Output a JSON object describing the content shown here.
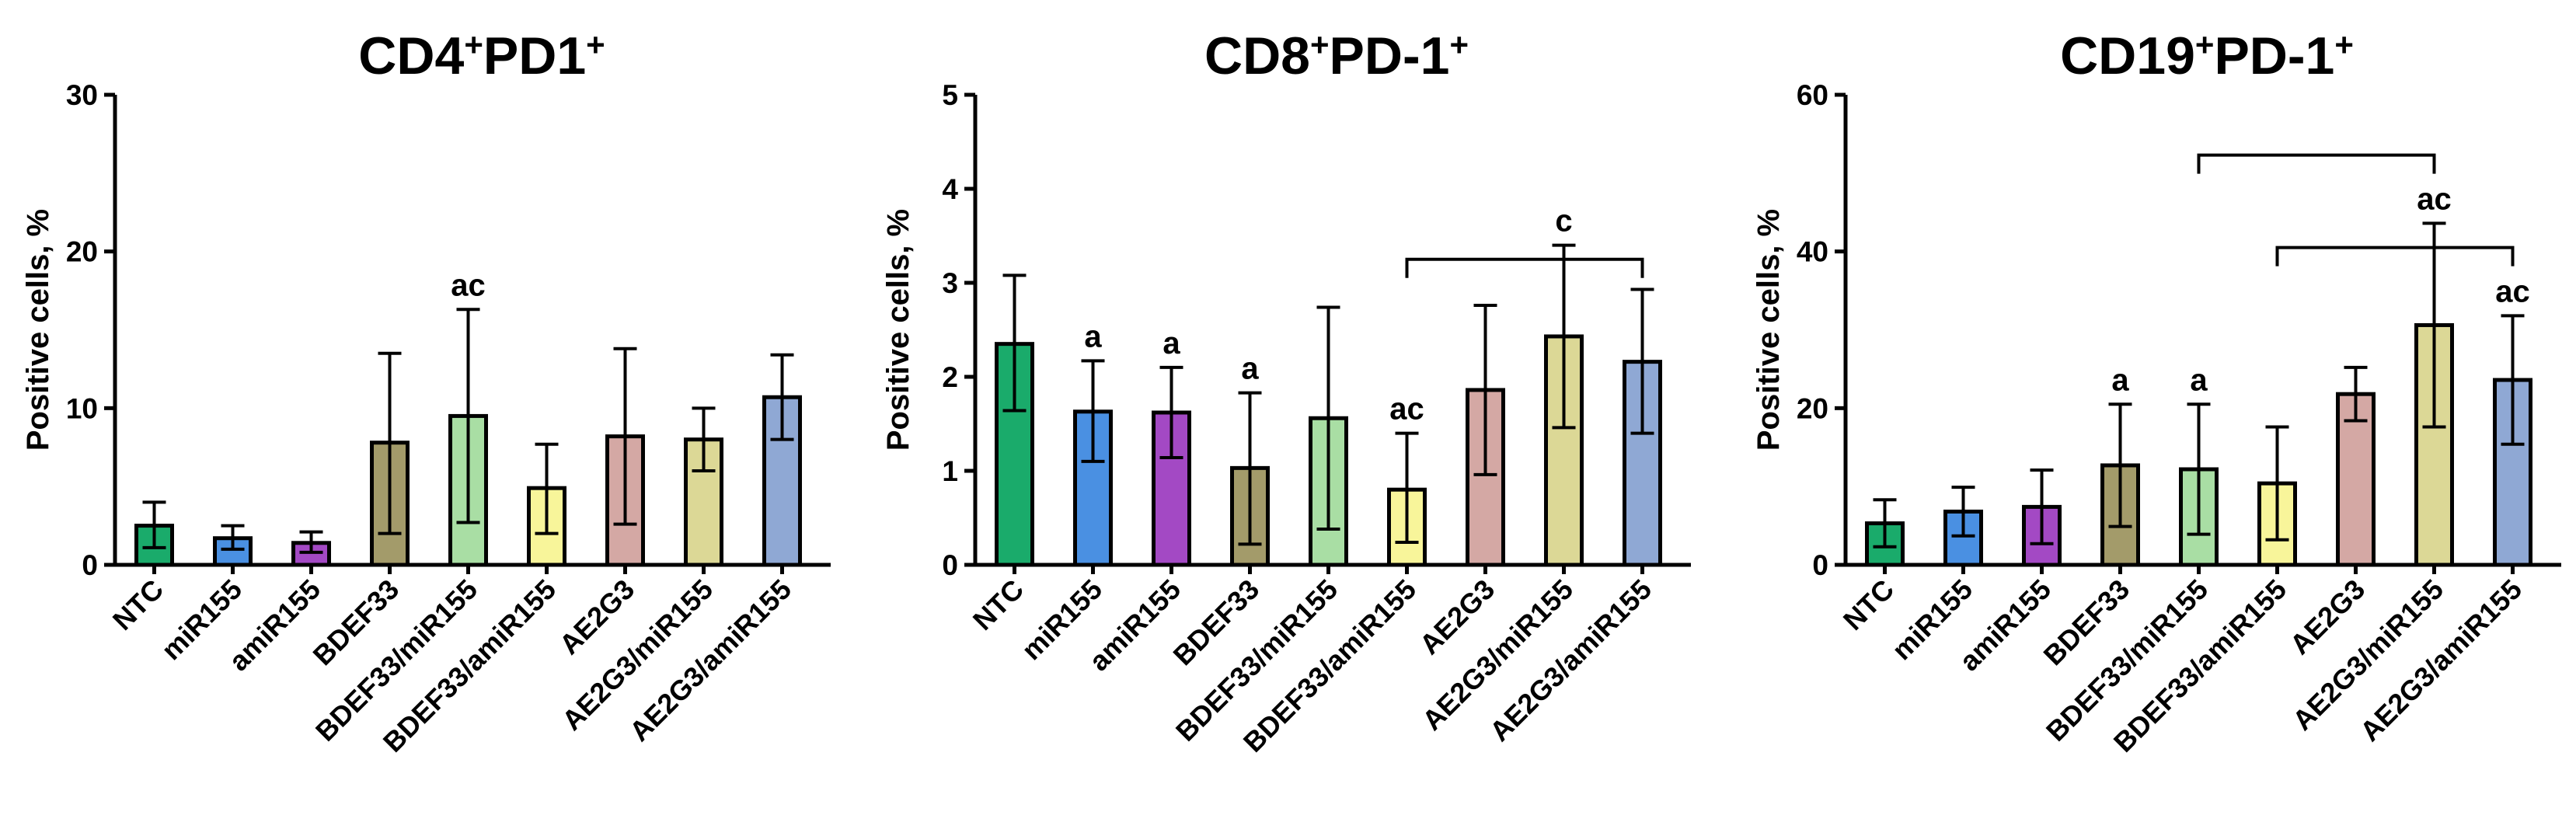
{
  "chart_data": [
    {
      "type": "bar",
      "title": "CD4",
      "title_sup1": "+",
      "title_mid": "PD1",
      "title_sup2": "+",
      "ylabel": "Positive cells, %",
      "ylim": [
        0,
        30
      ],
      "yticks": [
        0,
        10,
        20,
        30
      ],
      "categories": [
        "NTC",
        "miR155",
        "amiR155",
        "BDEF33",
        "BDEF33/miR155",
        "BDEF33/amiR155",
        "AE2G3",
        "AE2G3/miR155",
        "AE2G3/amiR155"
      ],
      "values": [
        2.5,
        1.7,
        1.4,
        7.8,
        9.5,
        4.9,
        8.2,
        8.0,
        10.7
      ],
      "error_upper": [
        4.0,
        2.5,
        2.1,
        13.5,
        16.3,
        7.7,
        13.8,
        10.0,
        13.4
      ],
      "error_lower": [
        1.1,
        1.0,
        0.8,
        2.0,
        2.7,
        2.0,
        2.6,
        6.0,
        8.0
      ],
      "colors": [
        "#1aab6b",
        "#4a90e2",
        "#a349c4",
        "#a39b6a",
        "#a9dea4",
        "#f8f59a",
        "#d4a8a4",
        "#dcd896",
        "#8fa8d4"
      ],
      "annotations": [
        {
          "category": 4,
          "text": "ac"
        }
      ],
      "brackets": []
    },
    {
      "type": "bar",
      "title": "CD8",
      "title_sup1": "+",
      "title_mid": "PD-1",
      "title_sup2": "+",
      "ylabel": "Positive cells, %",
      "ylim": [
        0,
        5
      ],
      "yticks": [
        0,
        1,
        2,
        3,
        4,
        5
      ],
      "categories": [
        "NTC",
        "miR155",
        "amiR155",
        "BDEF33",
        "BDEF33/miR155",
        "BDEF33/amiR155",
        "AE2G3",
        "AE2G3/miR155",
        "AE2G3/amiR155"
      ],
      "values": [
        2.35,
        1.63,
        1.62,
        1.03,
        1.56,
        0.8,
        1.86,
        2.43,
        2.16
      ],
      "error_upper": [
        3.08,
        2.17,
        2.1,
        1.83,
        2.74,
        1.4,
        2.76,
        3.4,
        2.93
      ],
      "error_lower": [
        1.64,
        1.1,
        1.14,
        0.22,
        0.38,
        0.24,
        0.96,
        1.46,
        1.4
      ],
      "colors": [
        "#1aab6b",
        "#4a90e2",
        "#a349c4",
        "#a39b6a",
        "#a9dea4",
        "#f8f59a",
        "#d4a8a4",
        "#dcd896",
        "#8fa8d4"
      ],
      "annotations": [
        {
          "category": 1,
          "text": "a"
        },
        {
          "category": 2,
          "text": "a"
        },
        {
          "category": 3,
          "text": "a"
        },
        {
          "category": 5,
          "text": "ac"
        },
        {
          "category": 7,
          "text": "c"
        }
      ],
      "brackets": [
        {
          "from": 5,
          "to": 8,
          "level": 3.25
        }
      ]
    },
    {
      "type": "bar",
      "title": "CD19",
      "title_sup1": "+",
      "title_mid": "PD-1",
      "title_sup2": "+",
      "ylabel": "Positive cells, %",
      "ylim": [
        0,
        60
      ],
      "yticks": [
        0,
        20,
        40,
        60
      ],
      "categories": [
        "NTC",
        "miR155",
        "amiR155",
        "BDEF33",
        "BDEF33/miR155",
        "BDEF33/amiR155",
        "AE2G3",
        "AE2G3/miR155",
        "AE2G3/amiR155"
      ],
      "values": [
        5.3,
        6.8,
        7.4,
        12.7,
        12.2,
        10.4,
        21.8,
        30.6,
        23.6
      ],
      "error_upper": [
        8.3,
        9.9,
        12.1,
        20.5,
        20.5,
        17.6,
        25.2,
        43.6,
        31.8
      ],
      "error_lower": [
        2.3,
        3.7,
        2.7,
        4.9,
        3.9,
        3.2,
        18.4,
        17.6,
        15.4
      ],
      "colors": [
        "#1aab6b",
        "#4a90e2",
        "#a349c4",
        "#a39b6a",
        "#a9dea4",
        "#f8f59a",
        "#d4a8a4",
        "#dcd896",
        "#8fa8d4"
      ],
      "annotations": [
        {
          "category": 3,
          "text": "a"
        },
        {
          "category": 4,
          "text": "a"
        },
        {
          "category": 7,
          "text": "ac"
        },
        {
          "category": 8,
          "text": "ac"
        }
      ],
      "brackets": [
        {
          "from": 4,
          "to": 7,
          "level": 52.3
        },
        {
          "from": 5,
          "to": 8,
          "level": 40.5
        }
      ]
    }
  ]
}
